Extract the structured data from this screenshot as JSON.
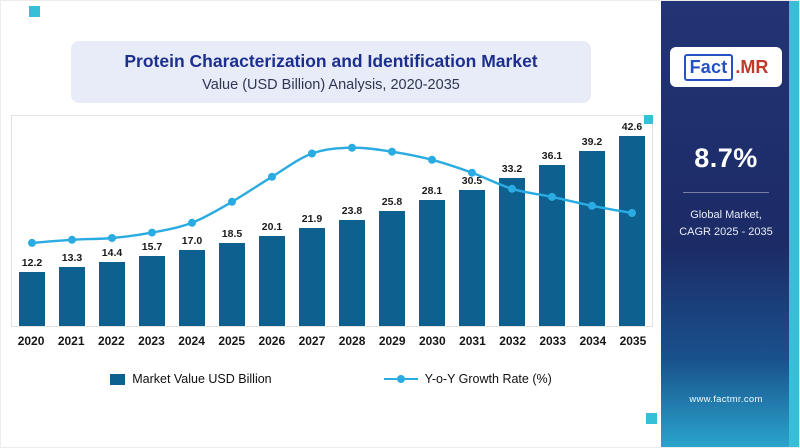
{
  "colors": {
    "accent": "#35c0d8",
    "bar": "#0e608f",
    "line": "#2aabe2",
    "title": "#1c2f8f",
    "header_bg": "#e8ebf8",
    "logo_blue": "#2451c4",
    "logo_red": "#c0392b",
    "sidebar_top": "#223475",
    "sidebar_mid": "#1c2b66",
    "sidebar_low": "#19518d",
    "sidebar_bottom": "#2aa6cc"
  },
  "header": {
    "title": "Protein Characterization and Identification Market",
    "subtitle": "Value (USD Billion) Analysis, 2020-2035"
  },
  "legend": {
    "bar_label": "Market Value USD Billion",
    "line_label": "Y-o-Y Growth Rate (%)"
  },
  "sidebar": {
    "logo_fact": "Fact",
    "logo_mr": ".MR",
    "cagr_value": "8.7%",
    "caption_line1": "Global Market,",
    "caption_line2": "CAGR 2025 - 2035",
    "website": "www.factmr.com"
  },
  "chart_data": {
    "type": "bar",
    "title": "Protein Characterization and Identification Market",
    "subtitle": "Value (USD Billion) Analysis, 2020-2035",
    "categories": [
      "2020",
      "2021",
      "2022",
      "2023",
      "2024",
      "2025",
      "2026",
      "2027",
      "2028",
      "2029",
      "2030",
      "2031",
      "2032",
      "2033",
      "2034",
      "2035"
    ],
    "series": [
      {
        "name": "Market Value USD Billion",
        "type": "bar",
        "values": [
          12.2,
          13.3,
          14.4,
          15.7,
          17.0,
          18.5,
          20.1,
          21.9,
          23.8,
          25.8,
          28.1,
          30.5,
          33.2,
          36.1,
          39.2,
          42.6
        ],
        "labels": [
          "12.2",
          "13.3",
          "14.4",
          "15.7",
          "17.0",
          "18.5",
          "20.1",
          "21.9",
          "23.8",
          "25.8",
          "28.1",
          "30.5",
          "33.2",
          "36.1",
          "39.2",
          "42.6"
        ]
      },
      {
        "name": "Y-o-Y Growth Rate (%)",
        "type": "line",
        "axis": "unlabeled",
        "note": "No numeric axis shown for this curve; values are visual estimates expressed on the bar axis scale",
        "values": [
          18.6,
          19.3,
          19.7,
          20.9,
          23.1,
          27.8,
          33.4,
          38.6,
          39.9,
          39.0,
          37.2,
          34.3,
          30.7,
          28.9,
          26.9,
          25.3
        ]
      }
    ],
    "ylim": [
      0,
      47
    ],
    "grid": false,
    "legend_position": "bottom",
    "bar_value_labels_shown": true,
    "xlabel": "",
    "ylabel": ""
  }
}
